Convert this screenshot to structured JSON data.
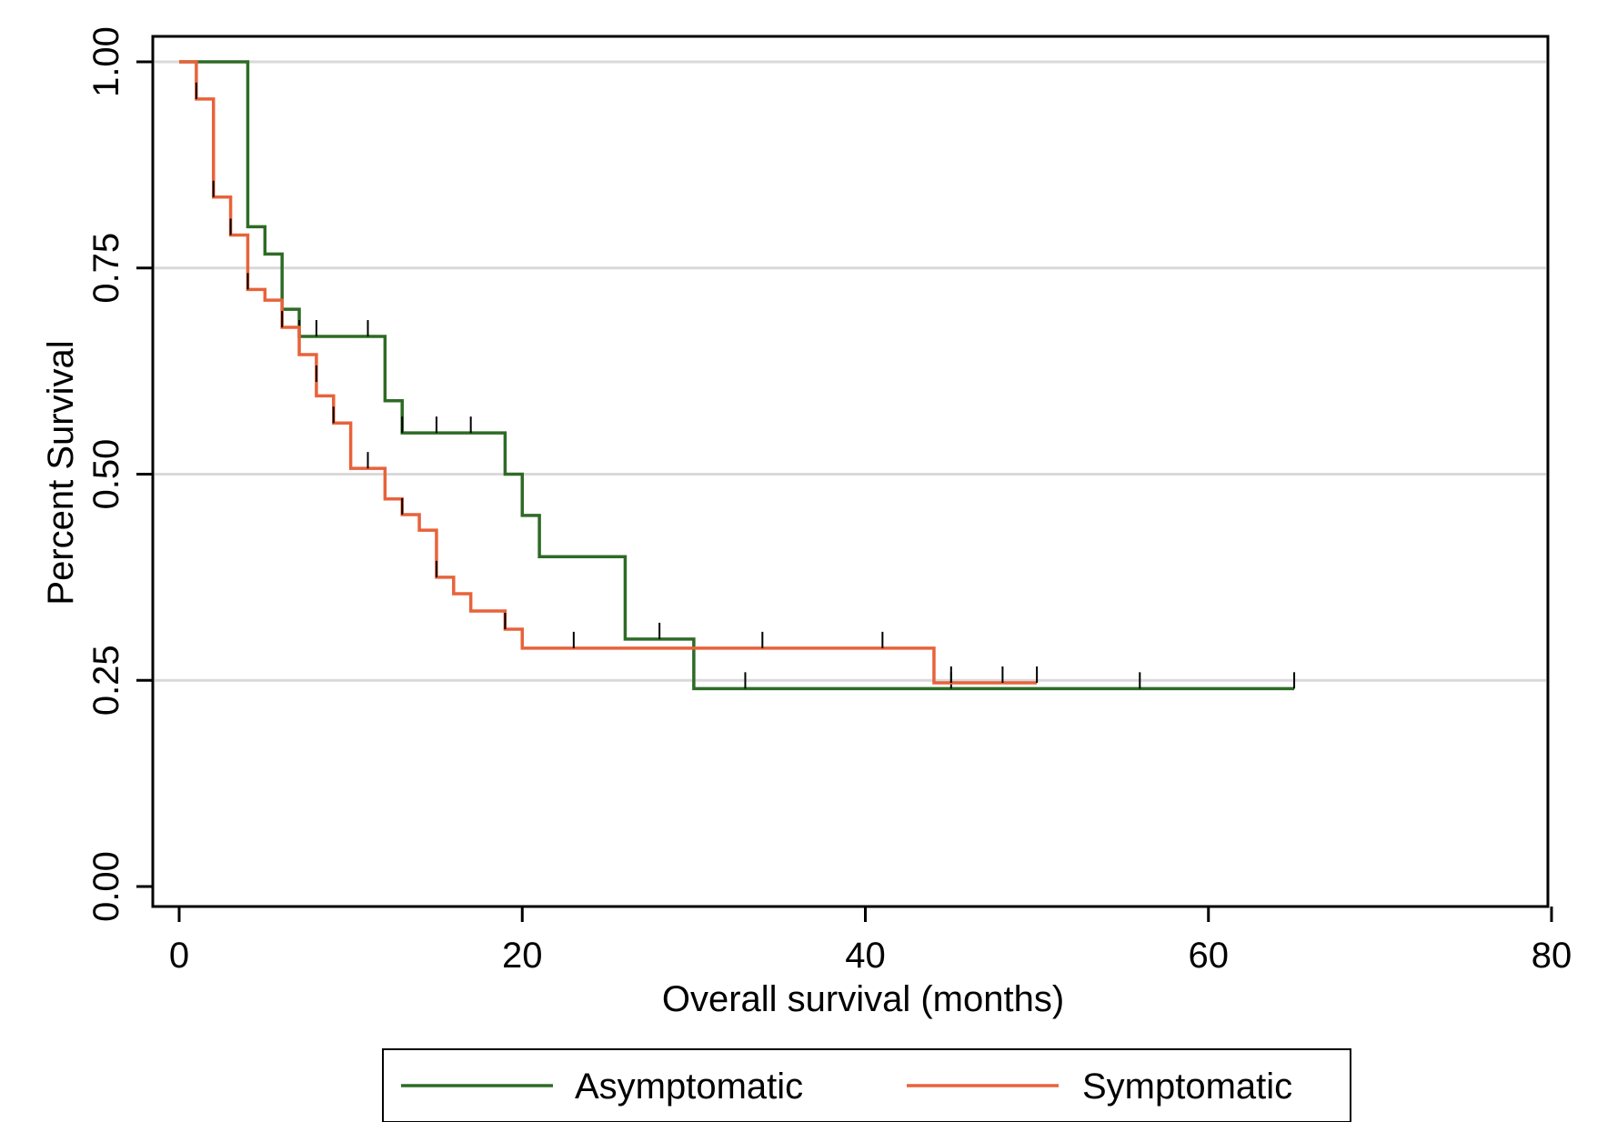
{
  "chart_data": {
    "type": "line",
    "step": true,
    "xlabel": "Overall survival (months)",
    "ylabel": "Percent Survival",
    "xlim": [
      0,
      80
    ],
    "ylim": [
      0,
      1
    ],
    "xticks": [
      0,
      20,
      40,
      60,
      80
    ],
    "xtick_labels": [
      "0",
      "20",
      "40",
      "60",
      "80"
    ],
    "yticks": [
      0,
      0.25,
      0.5,
      0.75,
      1
    ],
    "ytick_labels": [
      "0.00",
      "0.25",
      "0.50",
      "0.75",
      "1.00"
    ],
    "grid": "horizontal",
    "legend_position": "bottom",
    "series": [
      {
        "name": "Asymptomatic",
        "color": "#2e6b26",
        "points": [
          [
            0,
            1.0
          ],
          [
            4,
            0.8
          ],
          [
            5,
            0.767
          ],
          [
            6,
            0.7
          ],
          [
            7,
            0.667
          ],
          [
            12,
            0.589
          ],
          [
            13,
            0.55
          ],
          [
            19,
            0.5
          ],
          [
            20,
            0.45
          ],
          [
            21,
            0.4
          ],
          [
            26,
            0.3
          ],
          [
            30,
            0.24
          ],
          [
            65,
            0.24
          ]
        ],
        "censored": [
          [
            7,
            0.667
          ],
          [
            8,
            0.667
          ],
          [
            11,
            0.667
          ],
          [
            13,
            0.55
          ],
          [
            15,
            0.55
          ],
          [
            17,
            0.55
          ],
          [
            28,
            0.3
          ],
          [
            33,
            0.24
          ],
          [
            45,
            0.24
          ],
          [
            56,
            0.24
          ],
          [
            65,
            0.24
          ]
        ]
      },
      {
        "name": "Symptomatic",
        "color": "#e8623a",
        "points": [
          [
            0,
            1.0
          ],
          [
            1,
            0.955
          ],
          [
            2,
            0.836
          ],
          [
            3,
            0.79
          ],
          [
            4,
            0.724
          ],
          [
            5,
            0.711
          ],
          [
            6,
            0.678
          ],
          [
            7,
            0.645
          ],
          [
            8,
            0.612
          ],
          [
            8,
            0.595
          ],
          [
            9,
            0.562
          ],
          [
            10,
            0.507
          ],
          [
            12,
            0.47
          ],
          [
            13,
            0.451
          ],
          [
            14,
            0.432
          ],
          [
            15,
            0.375
          ],
          [
            16,
            0.355
          ],
          [
            17,
            0.334
          ],
          [
            19,
            0.312
          ],
          [
            20,
            0.289
          ],
          [
            44,
            0.247
          ],
          [
            50,
            0.247
          ]
        ],
        "censored": [
          [
            1,
            0.955
          ],
          [
            2,
            0.836
          ],
          [
            3,
            0.79
          ],
          [
            4,
            0.724
          ],
          [
            6,
            0.678
          ],
          [
            8,
            0.612
          ],
          [
            9,
            0.562
          ],
          [
            11,
            0.507
          ],
          [
            13,
            0.451
          ],
          [
            15,
            0.375
          ],
          [
            19,
            0.312
          ],
          [
            23,
            0.289
          ],
          [
            34,
            0.289
          ],
          [
            41,
            0.289
          ],
          [
            45,
            0.247
          ],
          [
            48,
            0.247
          ],
          [
            50,
            0.247
          ]
        ]
      }
    ]
  }
}
